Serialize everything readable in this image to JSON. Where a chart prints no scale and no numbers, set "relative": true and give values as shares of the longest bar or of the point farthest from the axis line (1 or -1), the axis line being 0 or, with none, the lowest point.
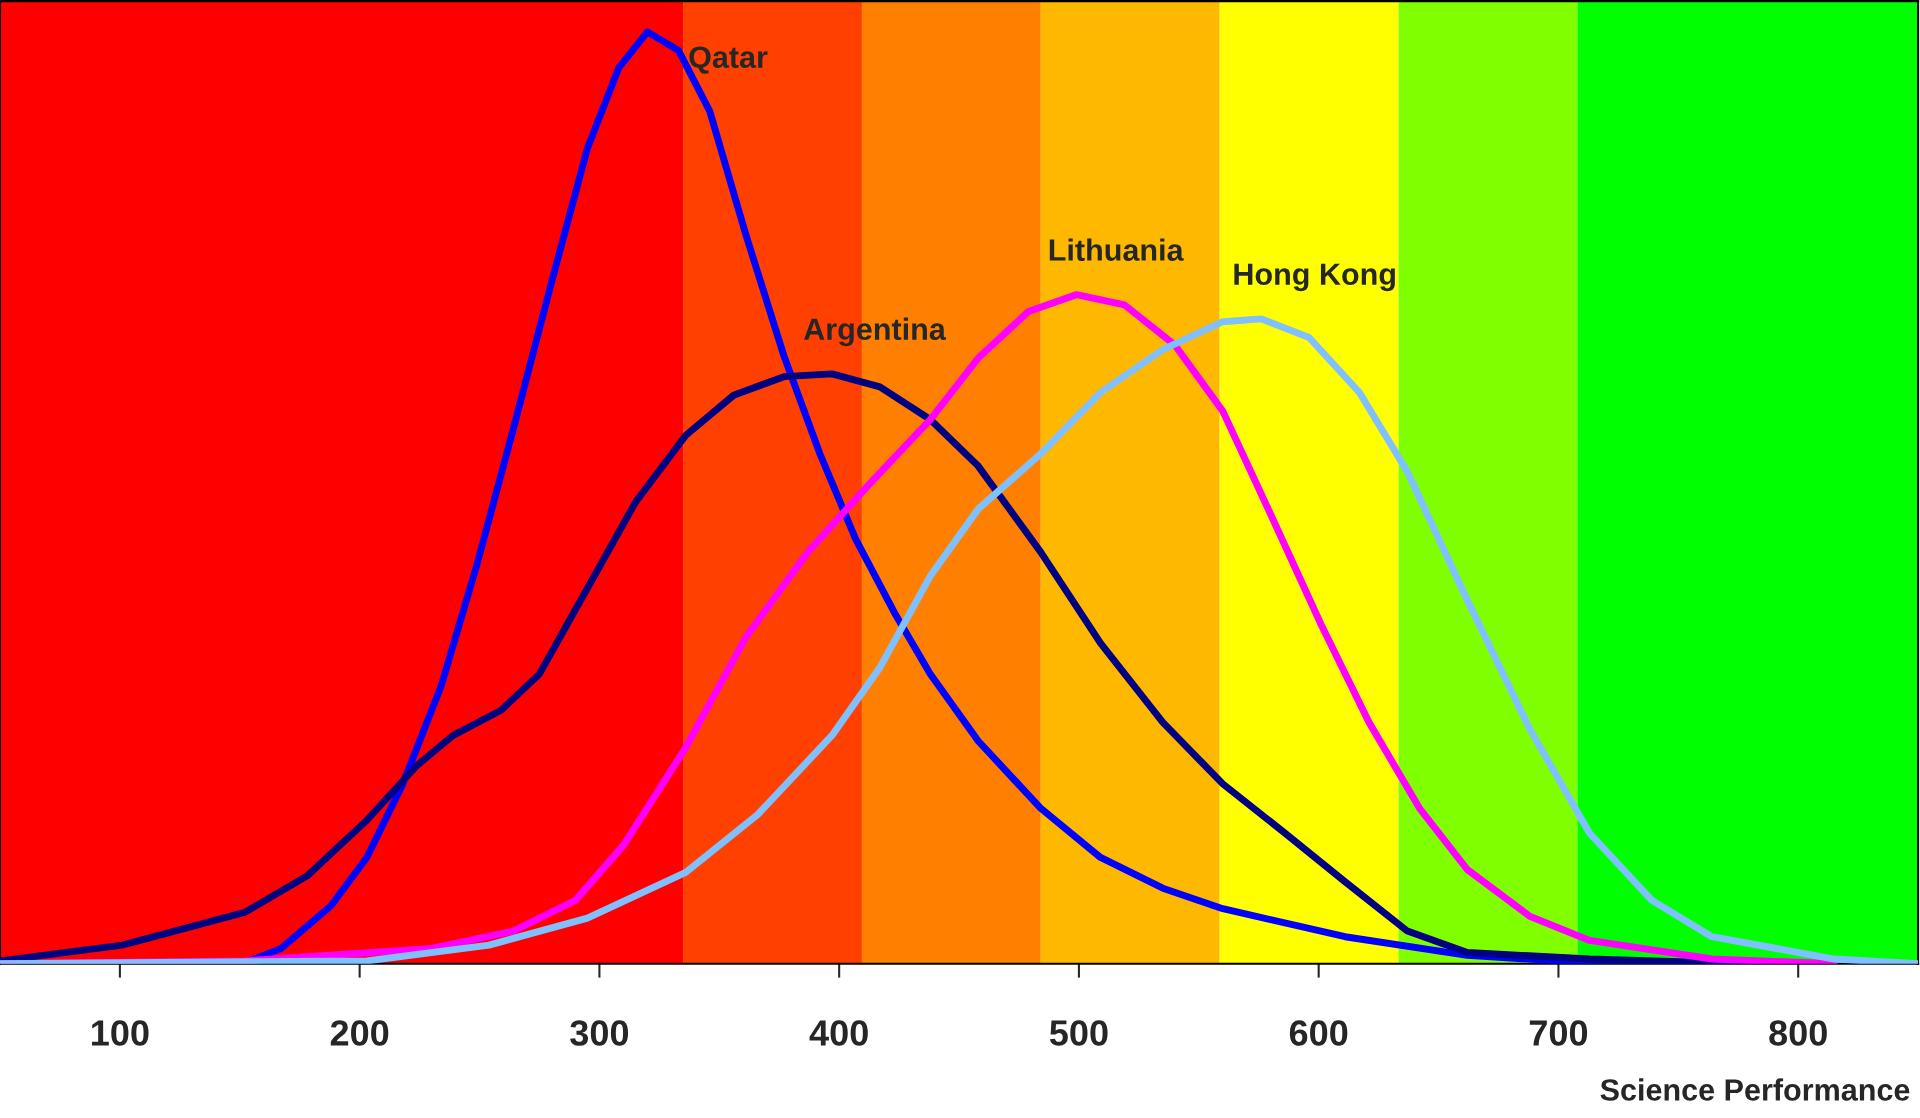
{
  "chart_data": {
    "type": "line",
    "relative": true,
    "xlabel": "Science Performance",
    "xlim": [
      50,
      850
    ],
    "xticks": [
      100,
      200,
      300,
      400,
      500,
      600,
      700,
      800
    ],
    "bands": [
      {
        "axis": "x",
        "from": 50,
        "to": 334.9,
        "color": "#ff0000"
      },
      {
        "axis": "x",
        "from": 334.9,
        "to": 409.5,
        "color": "#ff4000"
      },
      {
        "axis": "x",
        "from": 409.5,
        "to": 484.1,
        "color": "#ff8000"
      },
      {
        "axis": "x",
        "from": 484.1,
        "to": 558.7,
        "color": "#ffb800"
      },
      {
        "axis": "x",
        "from": 558.7,
        "to": 633.3,
        "color": "#ffff00"
      },
      {
        "axis": "x",
        "from": 633.3,
        "to": 707.9,
        "color": "#80ff00"
      },
      {
        "axis": "x",
        "from": 707.9,
        "to": 850,
        "color": "#00ff00"
      }
    ],
    "series": [
      {
        "name": "Qatar",
        "color": "#0000ff",
        "x": [
          101,
          152,
          167,
          188,
          203,
          218,
          234,
          249,
          264,
          280,
          295,
          308,
          320,
          333,
          346,
          361,
          377,
          392,
          407,
          423,
          438,
          458,
          484,
          509,
          535,
          560,
          611,
          662,
          713,
          785
        ],
        "values": [
          0,
          0.001,
          0.016,
          0.062,
          0.114,
          0.193,
          0.298,
          0.429,
          0.573,
          0.731,
          0.875,
          0.961,
          1.0,
          0.98,
          0.915,
          0.783,
          0.652,
          0.547,
          0.455,
          0.377,
          0.311,
          0.239,
          0.167,
          0.114,
          0.081,
          0.059,
          0.029,
          0.009,
          0.001,
          0
        ]
      },
      {
        "name": "Argentina",
        "color": "#000080",
        "x": [
          50,
          101,
          152,
          178,
          203,
          224,
          239,
          259,
          275,
          295,
          315,
          336,
          356,
          377,
          397,
          417,
          438,
          458,
          484,
          509,
          535,
          560,
          586,
          611,
          637,
          662,
          713,
          764
        ],
        "values": [
          0.003,
          0.02,
          0.055,
          0.094,
          0.154,
          0.213,
          0.245,
          0.272,
          0.311,
          0.403,
          0.495,
          0.567,
          0.61,
          0.63,
          0.633,
          0.619,
          0.584,
          0.534,
          0.442,
          0.344,
          0.259,
          0.193,
          0.14,
          0.088,
          0.035,
          0.012,
          0.005,
          0.001
        ]
      },
      {
        "name": "Lithuania",
        "color": "#ff00ff",
        "x": [
          50,
          152,
          229,
          264,
          290,
          310,
          336,
          361,
          387,
          412,
          438,
          458,
          479,
          499,
          519,
          540,
          560,
          580,
          601,
          621,
          642,
          662,
          688,
          713,
          764,
          815
        ],
        "values": [
          0,
          0.003,
          0.016,
          0.035,
          0.068,
          0.127,
          0.232,
          0.35,
          0.442,
          0.513,
          0.584,
          0.65,
          0.7,
          0.718,
          0.707,
          0.664,
          0.593,
          0.482,
          0.364,
          0.259,
          0.167,
          0.101,
          0.051,
          0.025,
          0.005,
          0
        ]
      },
      {
        "name": "Hong Kong",
        "color": "#80c0ff",
        "x": [
          50,
          203,
          254,
          295,
          336,
          366,
          397,
          417,
          438,
          458,
          484,
          509,
          535,
          560,
          576,
          596,
          617,
          637,
          662,
          688,
          713,
          739,
          764,
          815,
          850
        ],
        "values": [
          0,
          0.003,
          0.02,
          0.049,
          0.098,
          0.16,
          0.245,
          0.318,
          0.416,
          0.488,
          0.547,
          0.613,
          0.659,
          0.689,
          0.692,
          0.672,
          0.613,
          0.528,
          0.39,
          0.252,
          0.14,
          0.068,
          0.029,
          0.005,
          0
        ]
      }
    ],
    "grid": false,
    "legend": false
  }
}
